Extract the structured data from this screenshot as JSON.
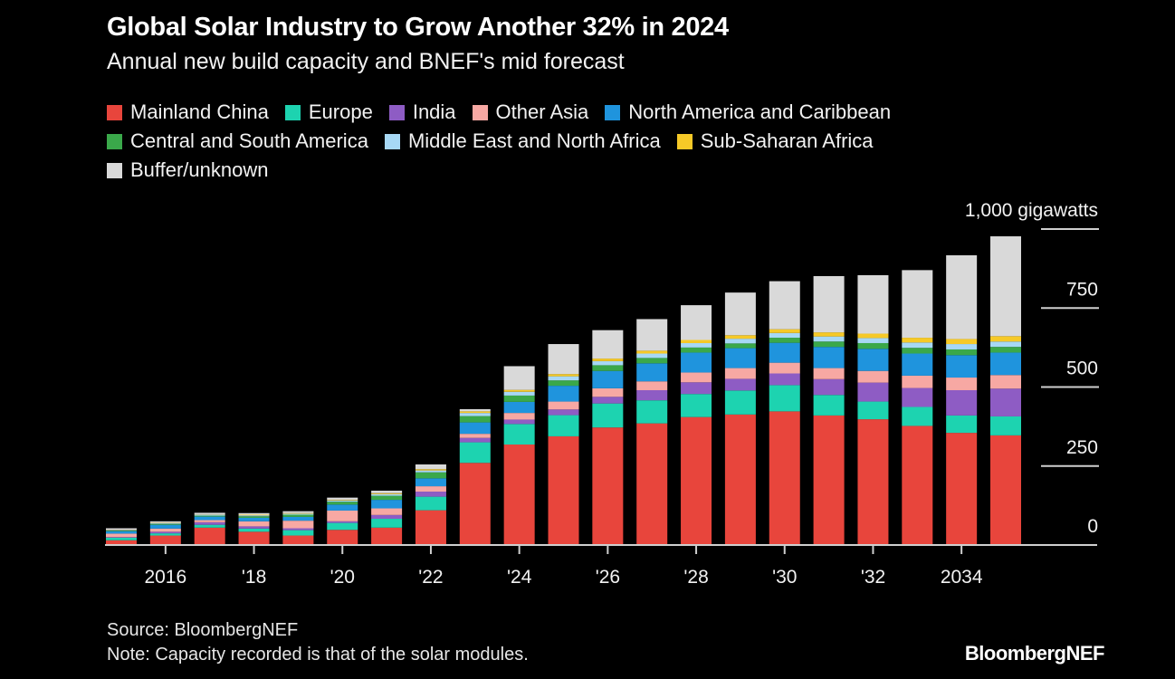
{
  "chart_data": {
    "type": "bar",
    "stacked": true,
    "title": "Global Solar Industry to Grow Another 32% in 2024",
    "subtitle": "Annual new build capacity and BNEF's mid forecast",
    "ylabel": "",
    "y_unit_label": "1,000 gigawatts",
    "ylim": [
      0,
      1000
    ],
    "yticks": [
      0,
      250,
      500,
      750,
      1000
    ],
    "ytick_labels": [
      "0",
      "250",
      "500",
      "750",
      "1,000 gigawatts"
    ],
    "y_axis_position": "right",
    "legend_position": "top",
    "grid": false,
    "categories": [
      2015,
      2016,
      2017,
      2018,
      2019,
      2020,
      2021,
      2022,
      2023,
      2024,
      2025,
      2026,
      2027,
      2028,
      2029,
      2030,
      2031,
      2032,
      2033,
      2034,
      2035
    ],
    "xtick_labels": [
      {
        "x": 2016,
        "label": "2016"
      },
      {
        "x": 2018,
        "label": "'18"
      },
      {
        "x": 2020,
        "label": "'20"
      },
      {
        "x": 2022,
        "label": "'22"
      },
      {
        "x": 2024,
        "label": "'24"
      },
      {
        "x": 2026,
        "label": "'26"
      },
      {
        "x": 2028,
        "label": "'28"
      },
      {
        "x": 2030,
        "label": "'30"
      },
      {
        "x": 2032,
        "label": "'32"
      },
      {
        "x": 2034,
        "label": "2034"
      }
    ],
    "series": [
      {
        "name": "Mainland China",
        "color": "#e8453c",
        "values": [
          15,
          30,
          55,
          42,
          30,
          48,
          55,
          110,
          260,
          318,
          344,
          372,
          385,
          405,
          413,
          423,
          410,
          398,
          377,
          355,
          347
        ]
      },
      {
        "name": "Europe",
        "color": "#1dd3b0",
        "values": [
          8,
          7,
          9,
          10,
          17,
          22,
          28,
          43,
          65,
          65,
          67,
          76,
          73,
          73,
          76,
          83,
          65,
          56,
          60,
          55,
          60
        ]
      },
      {
        "name": "India",
        "color": "#8e5cc4",
        "values": [
          2,
          5,
          8,
          7,
          6,
          5,
          12,
          16,
          14,
          14,
          18,
          21,
          32,
          37,
          37,
          37,
          50,
          60,
          60,
          80,
          88
        ]
      },
      {
        "name": "Other Asia",
        "color": "#f7a8a3",
        "values": [
          11,
          10,
          7,
          16,
          24,
          34,
          21,
          17,
          13,
          21,
          25,
          27,
          28,
          31,
          34,
          34,
          35,
          37,
          39,
          40,
          43
        ]
      },
      {
        "name": "North America and Caribbean",
        "color": "#1f94dd",
        "values": [
          8,
          12,
          11,
          11,
          12,
          19,
          27,
          25,
          36,
          35,
          50,
          55,
          57,
          63,
          63,
          63,
          67,
          70,
          70,
          71,
          71
        ]
      },
      {
        "name": "Central and South America",
        "color": "#3aa84a",
        "values": [
          2,
          3,
          3,
          5,
          7,
          9,
          13,
          19,
          20,
          20,
          17,
          18,
          17,
          16,
          15,
          16,
          17,
          18,
          18,
          18,
          18
        ]
      },
      {
        "name": "Middle East and North Africa",
        "color": "#a7d8f5",
        "values": [
          1,
          2,
          3,
          3,
          3,
          4,
          5,
          6,
          10,
          12,
          13,
          13,
          14,
          14,
          15,
          15,
          16,
          16,
          17,
          17,
          17
        ]
      },
      {
        "name": "Sub-Saharan Africa",
        "color": "#f6c927",
        "values": [
          1,
          1,
          1,
          2,
          2,
          2,
          3,
          4,
          5,
          6,
          7,
          8,
          9,
          10,
          11,
          12,
          13,
          14,
          15,
          16,
          17
        ]
      },
      {
        "name": "Buffer/unknown",
        "color": "#d9d9d9",
        "values": [
          5,
          5,
          5,
          5,
          6,
          7,
          8,
          15,
          7,
          75,
          95,
          90,
          100,
          110,
          135,
          152,
          178,
          185,
          214,
          265,
          316
        ]
      }
    ]
  },
  "footer": {
    "source": "Source: BloombergNEF",
    "note": "Note: Capacity recorded is that of the solar modules.",
    "brand": "BloombergNEF"
  },
  "colors": {
    "background": "#000000",
    "axis": "#cfcfcf",
    "text": "#ffffff"
  }
}
